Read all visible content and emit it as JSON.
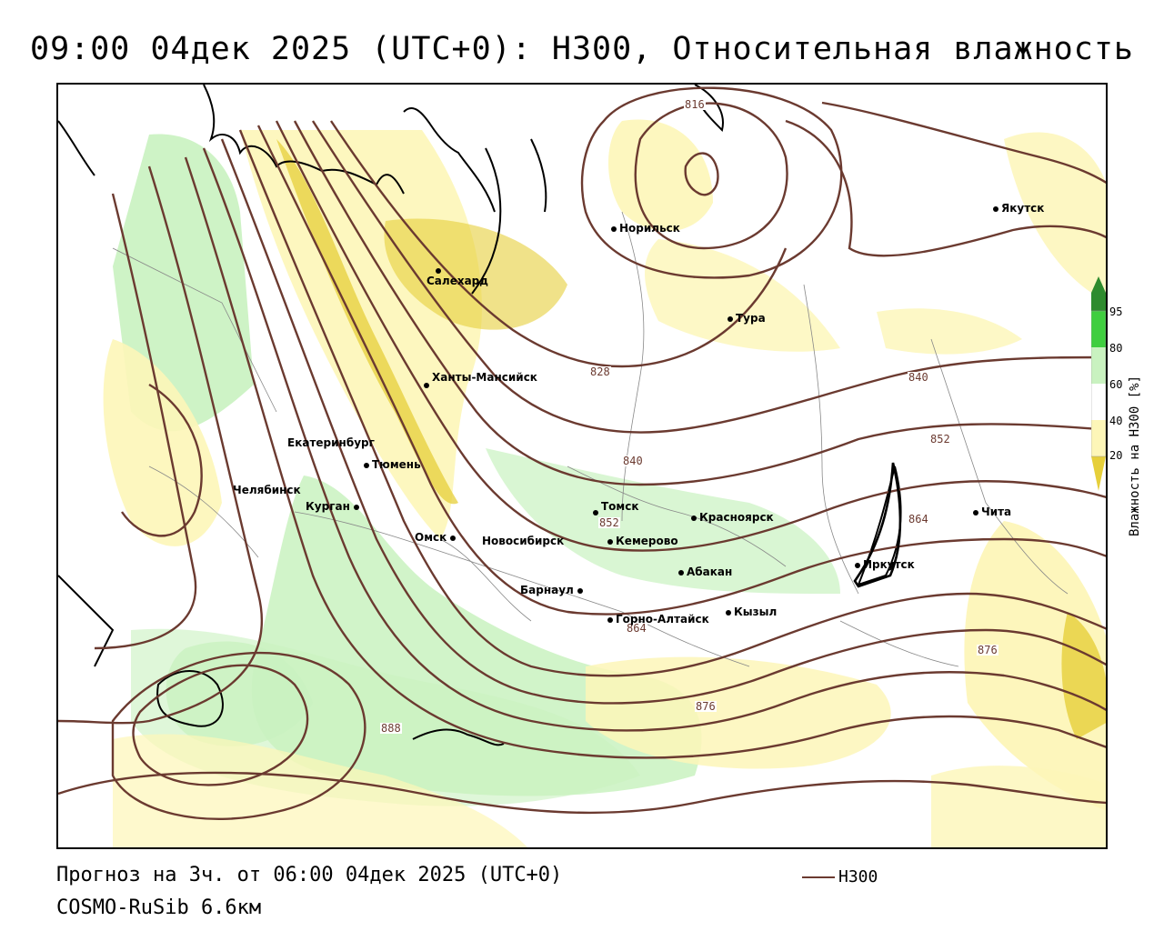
{
  "title": "09:00 04дек 2025 (UTC+0): H300, Относительная влажность",
  "footer": {
    "forecast": "Прогноз на 3ч. от 06:00 04дек 2025 (UTC+0)",
    "model": "COSMO-RuSib 6.6км"
  },
  "legend": {
    "series_label": "H300",
    "line_color": "#6b3a30"
  },
  "colorbar": {
    "label": "Влажность на H300 [%]",
    "ticks": [
      "95",
      "80",
      "60",
      "40",
      "20"
    ],
    "colors": {
      "gt95": "#2e8b2e",
      "c80_95": "#3fce3f",
      "c60_80": "#c9f2c0",
      "c40_60": "#ffffff",
      "c20_40": "#fdf6b8",
      "lt20": "#e6cf3a"
    }
  },
  "contour_labels": [
    "816",
    "828",
    "840",
    "840",
    "852",
    "852",
    "864",
    "864",
    "876",
    "876",
    "888"
  ],
  "cities": [
    {
      "name": "Норильск"
    },
    {
      "name": "Якутск"
    },
    {
      "name": "Салехард"
    },
    {
      "name": "Тура"
    },
    {
      "name": "Ханты-Мансийск"
    },
    {
      "name": "Екатеринбург"
    },
    {
      "name": "Тюмень"
    },
    {
      "name": "Челябинск"
    },
    {
      "name": "Курган"
    },
    {
      "name": "Омск"
    },
    {
      "name": "Новосибирск"
    },
    {
      "name": "Томск"
    },
    {
      "name": "Кемерово"
    },
    {
      "name": "Красноярск"
    },
    {
      "name": "Абакан"
    },
    {
      "name": "Барнаул"
    },
    {
      "name": "Горно-Алтайск"
    },
    {
      "name": "Кызыл"
    },
    {
      "name": "Иркутск"
    },
    {
      "name": "Чита"
    }
  ]
}
